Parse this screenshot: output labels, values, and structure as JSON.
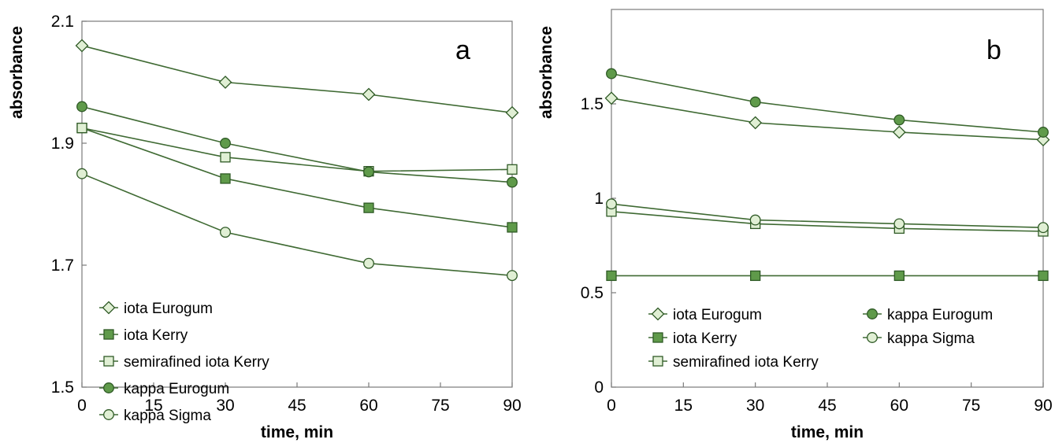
{
  "colors": {
    "line": "#3f6a33",
    "marker_stroke": "#2f5a26",
    "dark_fill": "#5f9a4a",
    "light_fill": "#e0efd4",
    "axis": "#7a7a7a"
  },
  "chart_data": [
    {
      "type": "line",
      "panel_label": "a",
      "xlabel": "time, min",
      "ylabel": "absorbance",
      "xlim": [
        0,
        90
      ],
      "ylim": [
        1.5,
        2.1
      ],
      "xticks": [
        0,
        15,
        30,
        45,
        60,
        75,
        90
      ],
      "yticks": [
        1.5,
        1.7,
        1.9,
        2.1
      ],
      "ytick_labels": [
        "1.5",
        "1.7",
        "1.9",
        "2.1"
      ],
      "legend_position": "bottom-left",
      "legend_order": [
        0,
        1,
        2,
        3,
        4
      ],
      "x": [
        0,
        30,
        60,
        90
      ],
      "series": [
        {
          "name": "iota Eurogum",
          "marker": "diamond",
          "fill": "light",
          "values": [
            2.06,
            2.0,
            1.98,
            1.95
          ]
        },
        {
          "name": "iota Kerry",
          "marker": "square",
          "fill": "dark",
          "values": [
            1.925,
            1.842,
            1.794,
            1.762
          ]
        },
        {
          "name": "semirafined iota Kerry",
          "marker": "square",
          "fill": "light",
          "values": [
            1.925,
            1.877,
            1.854,
            1.857
          ]
        },
        {
          "name": "kappa Eurogum",
          "marker": "circle",
          "fill": "dark",
          "values": [
            1.96,
            1.9,
            1.853,
            1.836
          ]
        },
        {
          "name": "kappa Sigma",
          "marker": "circle",
          "fill": "light",
          "values": [
            1.85,
            1.754,
            1.703,
            1.683
          ]
        }
      ]
    },
    {
      "type": "line",
      "panel_label": "b",
      "xlabel": "time, min",
      "ylabel": "absorbance",
      "xlim": [
        0,
        90
      ],
      "ylim": [
        0,
        2.0
      ],
      "xticks": [
        0,
        15,
        30,
        45,
        60,
        75,
        90
      ],
      "yticks": [
        0,
        0.5,
        1,
        1.5
      ],
      "ytick_labels": [
        "0",
        "0.5",
        "1",
        "1.5"
      ],
      "legend_position": "bottom-left",
      "legend_order": [
        0,
        3,
        1,
        4,
        2
      ],
      "x": [
        0,
        30,
        60,
        90
      ],
      "series": [
        {
          "name": "iota Eurogum",
          "marker": "diamond",
          "fill": "light",
          "values": [
            1.53,
            1.4,
            1.35,
            1.31
          ]
        },
        {
          "name": "iota Kerry",
          "marker": "square",
          "fill": "dark",
          "values": [
            0.59,
            0.59,
            0.59,
            0.59
          ]
        },
        {
          "name": "semirafined iota Kerry",
          "marker": "square",
          "fill": "light",
          "values": [
            0.93,
            0.865,
            0.84,
            0.825
          ]
        },
        {
          "name": "kappa Eurogum",
          "marker": "circle",
          "fill": "dark",
          "values": [
            1.66,
            1.51,
            1.415,
            1.35
          ]
        },
        {
          "name": "kappa Sigma",
          "marker": "circle",
          "fill": "light",
          "values": [
            0.97,
            0.885,
            0.865,
            0.845
          ]
        }
      ]
    }
  ]
}
